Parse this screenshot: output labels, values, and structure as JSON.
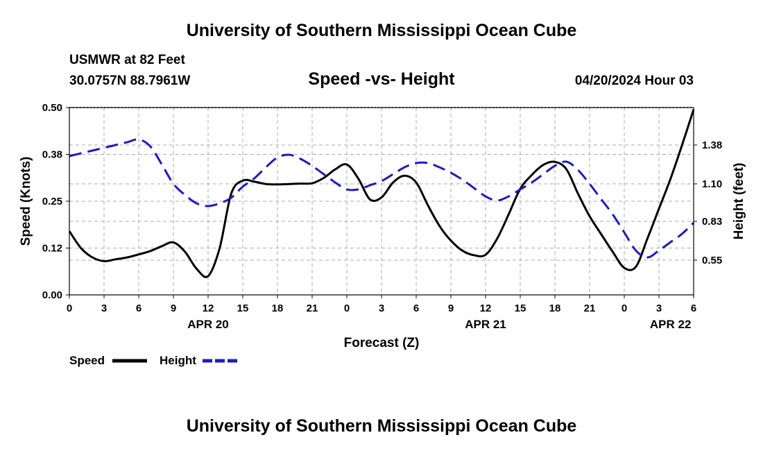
{
  "header": {
    "title": "University of Southern Mississippi Ocean Cube",
    "station": "USMWR at 82 Feet",
    "coords": "30.0757N  88.7961W",
    "datetime": "04/20/2024 Hour 03",
    "footer_title": "University of Southern Mississippi Ocean Cube"
  },
  "colors": {
    "speed": "#000000",
    "height": "#1a1acc",
    "grid": "#aaaaaa"
  },
  "chart_data": {
    "type": "line",
    "title": "Speed -vs- Height",
    "xlabel": "Forecast (Z)",
    "ylabel": "Speed (Knots)",
    "y2label": "Height (feet)",
    "x_range_hours": [
      0,
      54
    ],
    "x_ticks": [
      {
        "h": 0,
        "label": "0"
      },
      {
        "h": 3,
        "label": "3"
      },
      {
        "h": 6,
        "label": "6"
      },
      {
        "h": 9,
        "label": "9"
      },
      {
        "h": 12,
        "label": "12"
      },
      {
        "h": 15,
        "label": "15"
      },
      {
        "h": 18,
        "label": "18"
      },
      {
        "h": 21,
        "label": "21"
      },
      {
        "h": 24,
        "label": "0"
      },
      {
        "h": 27,
        "label": "3"
      },
      {
        "h": 30,
        "label": "6"
      },
      {
        "h": 33,
        "label": "9"
      },
      {
        "h": 36,
        "label": "12"
      },
      {
        "h": 39,
        "label": "15"
      },
      {
        "h": 42,
        "label": "18"
      },
      {
        "h": 45,
        "label": "21"
      },
      {
        "h": 48,
        "label": "0"
      },
      {
        "h": 51,
        "label": "3"
      },
      {
        "h": 54,
        "label": "6"
      }
    ],
    "date_labels": [
      {
        "h": 12,
        "label": "APR 20"
      },
      {
        "h": 36,
        "label": "APR 21"
      },
      {
        "h": 52,
        "label": "APR 22"
      }
    ],
    "ylim": [
      0,
      0.5
    ],
    "y_ticks": [
      {
        "v": 0,
        "label": "0.00"
      },
      {
        "v": 0.125,
        "label": "0.12"
      },
      {
        "v": 0.25,
        "label": "0.25"
      },
      {
        "v": 0.375,
        "label": "0.38"
      },
      {
        "v": 0.5,
        "label": "0.50"
      }
    ],
    "y2lim": [
      0.3,
      1.65
    ],
    "y2_ticks": [
      {
        "v": 0.55,
        "label": "0.55"
      },
      {
        "v": 0.83,
        "label": "0.83"
      },
      {
        "v": 1.1,
        "label": "1.10"
      },
      {
        "v": 1.38,
        "label": "1.38"
      }
    ],
    "series": [
      {
        "name": "Speed",
        "axis": "left",
        "style": "solid",
        "x": [
          0,
          1,
          2,
          3,
          4,
          5,
          6,
          7,
          8,
          9,
          10,
          11,
          12,
          13,
          14,
          15,
          16,
          17,
          18,
          19,
          20,
          21,
          22,
          23,
          24,
          25,
          26,
          27,
          28,
          29,
          30,
          31,
          32,
          33,
          34,
          35,
          36,
          37,
          38,
          39,
          40,
          41,
          42,
          43,
          44,
          45,
          46,
          47,
          48,
          49,
          50,
          51,
          52,
          53,
          54
        ],
        "values": [
          0.17,
          0.125,
          0.1,
          0.09,
          0.095,
          0.1,
          0.108,
          0.117,
          0.13,
          0.14,
          0.115,
          0.07,
          0.05,
          0.125,
          0.27,
          0.305,
          0.302,
          0.296,
          0.295,
          0.296,
          0.297,
          0.298,
          0.312,
          0.335,
          0.348,
          0.31,
          0.255,
          0.26,
          0.3,
          0.318,
          0.3,
          0.24,
          0.185,
          0.145,
          0.118,
          0.106,
          0.107,
          0.15,
          0.215,
          0.283,
          0.32,
          0.347,
          0.355,
          0.335,
          0.27,
          0.21,
          0.162,
          0.115,
          0.072,
          0.075,
          0.15,
          0.23,
          0.31,
          0.4,
          0.495
        ]
      },
      {
        "name": "Height",
        "axis": "right",
        "style": "dashed",
        "x": [
          0,
          1,
          2,
          3,
          4,
          5,
          6,
          7,
          8,
          9,
          10,
          11,
          12,
          13,
          14,
          15,
          16,
          17,
          18,
          19,
          20,
          21,
          22,
          23,
          24,
          25,
          26,
          27,
          28,
          29,
          30,
          31,
          32,
          33,
          34,
          35,
          36,
          37,
          38,
          39,
          40,
          41,
          42,
          43,
          44,
          45,
          46,
          47,
          48,
          49,
          50,
          51,
          52,
          53,
          54
        ],
        "values": [
          1.3,
          1.32,
          1.34,
          1.36,
          1.38,
          1.4,
          1.42,
          1.37,
          1.24,
          1.1,
          1.02,
          0.96,
          0.94,
          0.96,
          1.0,
          1.08,
          1.14,
          1.22,
          1.29,
          1.31,
          1.28,
          1.23,
          1.17,
          1.11,
          1.06,
          1.06,
          1.09,
          1.12,
          1.17,
          1.22,
          1.25,
          1.25,
          1.22,
          1.18,
          1.13,
          1.07,
          1.01,
          0.98,
          1.01,
          1.06,
          1.11,
          1.17,
          1.23,
          1.26,
          1.2,
          1.1,
          0.99,
          0.88,
          0.75,
          0.62,
          0.57,
          0.62,
          0.68,
          0.74,
          0.82
        ]
      }
    ],
    "legend": [
      {
        "name": "Speed",
        "style": "solid"
      },
      {
        "name": "Height",
        "style": "dashed"
      }
    ]
  }
}
